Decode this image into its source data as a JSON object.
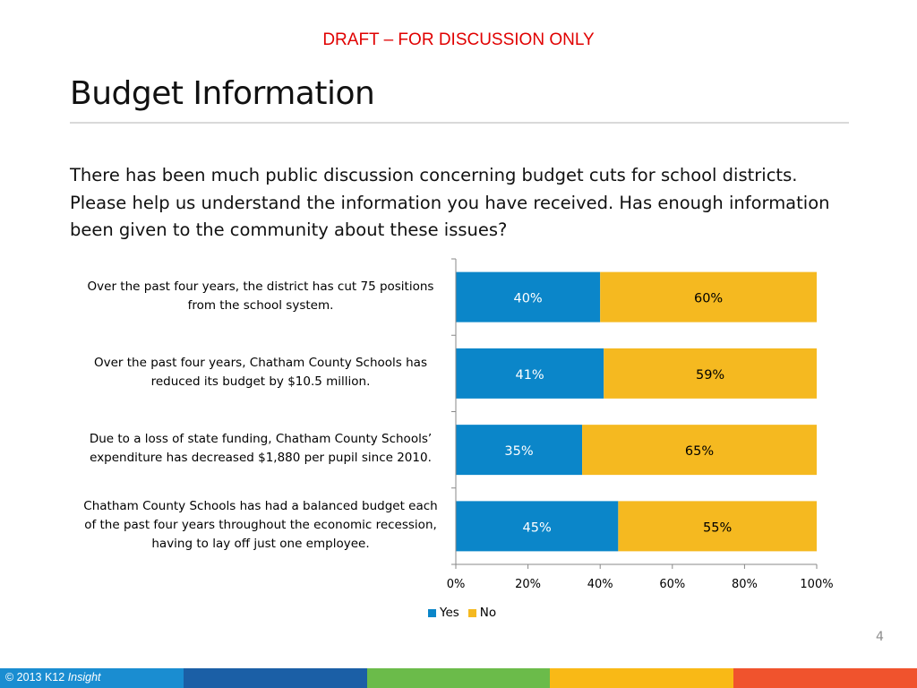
{
  "header": {
    "draft_notice": "DRAFT – FOR DISCUSSION ONLY",
    "title": "Budget Information"
  },
  "question": "There has been much public discussion concerning budget cuts for school districts.  Please help us understand the information you have received. Has enough information been given to the community about these issues?",
  "chart_data": {
    "type": "bar",
    "orientation": "horizontal",
    "stacked": true,
    "categories": [
      "Over the past four years, the district has cut 75 positions from the school system.",
      "Over the past four years, Chatham County Schools has reduced its budget by $10.5 million.",
      "Due to a loss of state funding, Chatham County Schools’ expenditure has decreased $1,880 per pupil since 2010.",
      "Chatham County Schools has had a balanced budget each of the past four years throughout the economic recession, having to lay off just one employee."
    ],
    "series": [
      {
        "name": "Yes",
        "values": [
          40,
          41,
          35,
          45
        ],
        "labels": [
          "40%",
          "41%",
          "35%",
          "45%"
        ],
        "color": "#0b86c9",
        "label_color": "#ffffff"
      },
      {
        "name": "No",
        "values": [
          60,
          59,
          65,
          55
        ],
        "labels": [
          "60%",
          "59%",
          "65%",
          "55%"
        ],
        "color": "#f5b920",
        "label_color": "#000000"
      }
    ],
    "xlim": [
      0,
      100
    ],
    "x_ticks": [
      "0%",
      "20%",
      "40%",
      "60%",
      "80%",
      "100%"
    ],
    "grid": false,
    "legend": "bottom"
  },
  "page_number": "4",
  "footer": {
    "copyright": "© 2013 K12",
    "brand": "Insight",
    "colors": [
      "#1a8dd1",
      "#1b5fa6",
      "#6bbb4a",
      "#f9b916",
      "#f0532d"
    ]
  }
}
